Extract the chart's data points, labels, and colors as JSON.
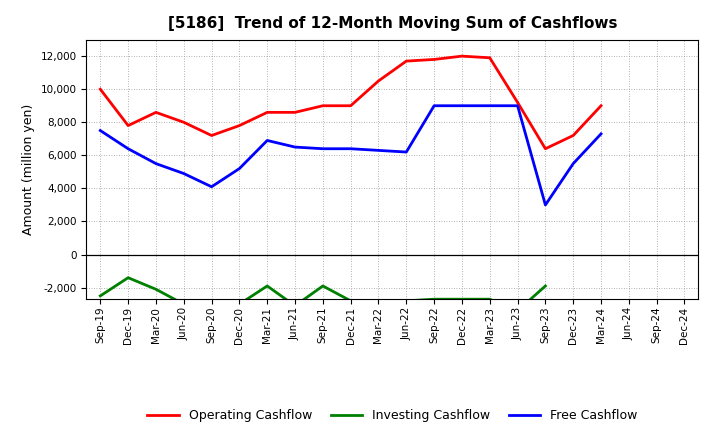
{
  "title": "[5186]  Trend of 12-Month Moving Sum of Cashflows",
  "ylabel": "Amount (million yen)",
  "x_labels": [
    "Sep-19",
    "Dec-19",
    "Mar-20",
    "Jun-20",
    "Sep-20",
    "Dec-20",
    "Mar-21",
    "Jun-21",
    "Sep-21",
    "Dec-21",
    "Mar-22",
    "Jun-22",
    "Sep-22",
    "Dec-22",
    "Mar-23",
    "Jun-23",
    "Sep-23",
    "Dec-23",
    "Mar-24",
    "Jun-24",
    "Sep-24",
    "Dec-24"
  ],
  "operating": [
    10000,
    7800,
    8600,
    8000,
    7200,
    7800,
    8600,
    8600,
    9000,
    9000,
    10500,
    11700,
    11800,
    12000,
    11900,
    9200,
    6400,
    7200,
    9000,
    null,
    null,
    null
  ],
  "investing": [
    -2500,
    -1400,
    -2100,
    -3000,
    -3100,
    -3000,
    -1900,
    -3100,
    -1900,
    -2800,
    -2900,
    -2800,
    -2700,
    -2700,
    -2700,
    -3400,
    -1900,
    null,
    null,
    null,
    null,
    null
  ],
  "free": [
    7500,
    6400,
    5500,
    4900,
    4100,
    5200,
    6900,
    6500,
    6400,
    6400,
    6300,
    6200,
    9000,
    9000,
    9000,
    9000,
    3000,
    5500,
    7300,
    null,
    null,
    null
  ],
  "ylim": [
    -2700,
    13000
  ],
  "yticks": [
    -2000,
    0,
    2000,
    4000,
    6000,
    8000,
    10000,
    12000
  ],
  "colors": {
    "operating": "#ff0000",
    "investing": "#008000",
    "free": "#0000ff"
  },
  "legend_labels": [
    "Operating Cashflow",
    "Investing Cashflow",
    "Free Cashflow"
  ],
  "background_color": "#ffffff",
  "grid_color": "#999999"
}
